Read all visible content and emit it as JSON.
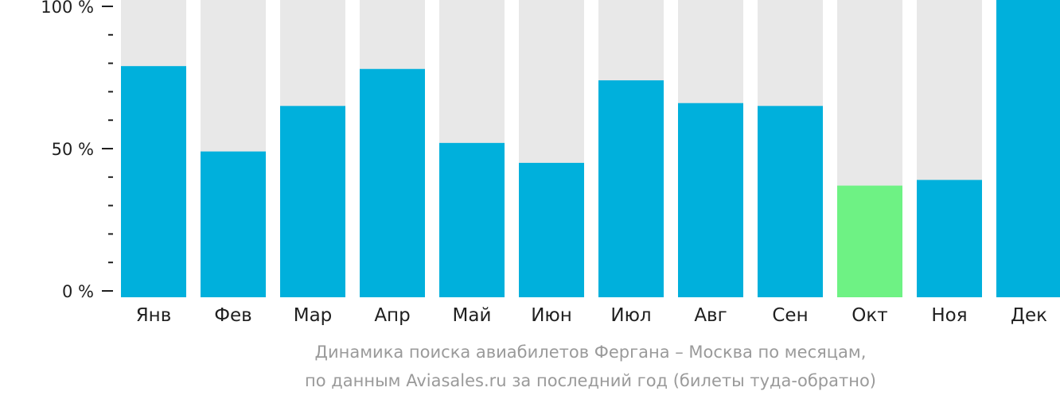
{
  "chart_data": {
    "type": "bar",
    "categories": [
      "Янв",
      "Фев",
      "Мар",
      "Апр",
      "Май",
      "Июн",
      "Июл",
      "Авг",
      "Сен",
      "Окт",
      "Ноя",
      "Дек"
    ],
    "values": [
      79,
      49,
      65,
      78,
      52,
      45,
      74,
      66,
      65,
      37,
      39,
      100
    ],
    "highlight_index": 9,
    "ylim": [
      0,
      100
    ],
    "y_ticks": [
      {
        "value": 100,
        "label": "100 %"
      },
      {
        "value": 50,
        "label": "50 %"
      },
      {
        "value": 0,
        "label": "0 %"
      }
    ],
    "minor_tick_step": 10,
    "caption_line1": "Динамика поиска авиабилетов Фергана – Москва по месяцам,",
    "caption_line2": "по данным Aviasales.ru за последний год (билеты туда-обратно)",
    "colors": {
      "bar": "#00b0dc",
      "highlight": "#6ef284",
      "track": "#e8e8e8",
      "axis": "#1f1f1f"
    }
  }
}
